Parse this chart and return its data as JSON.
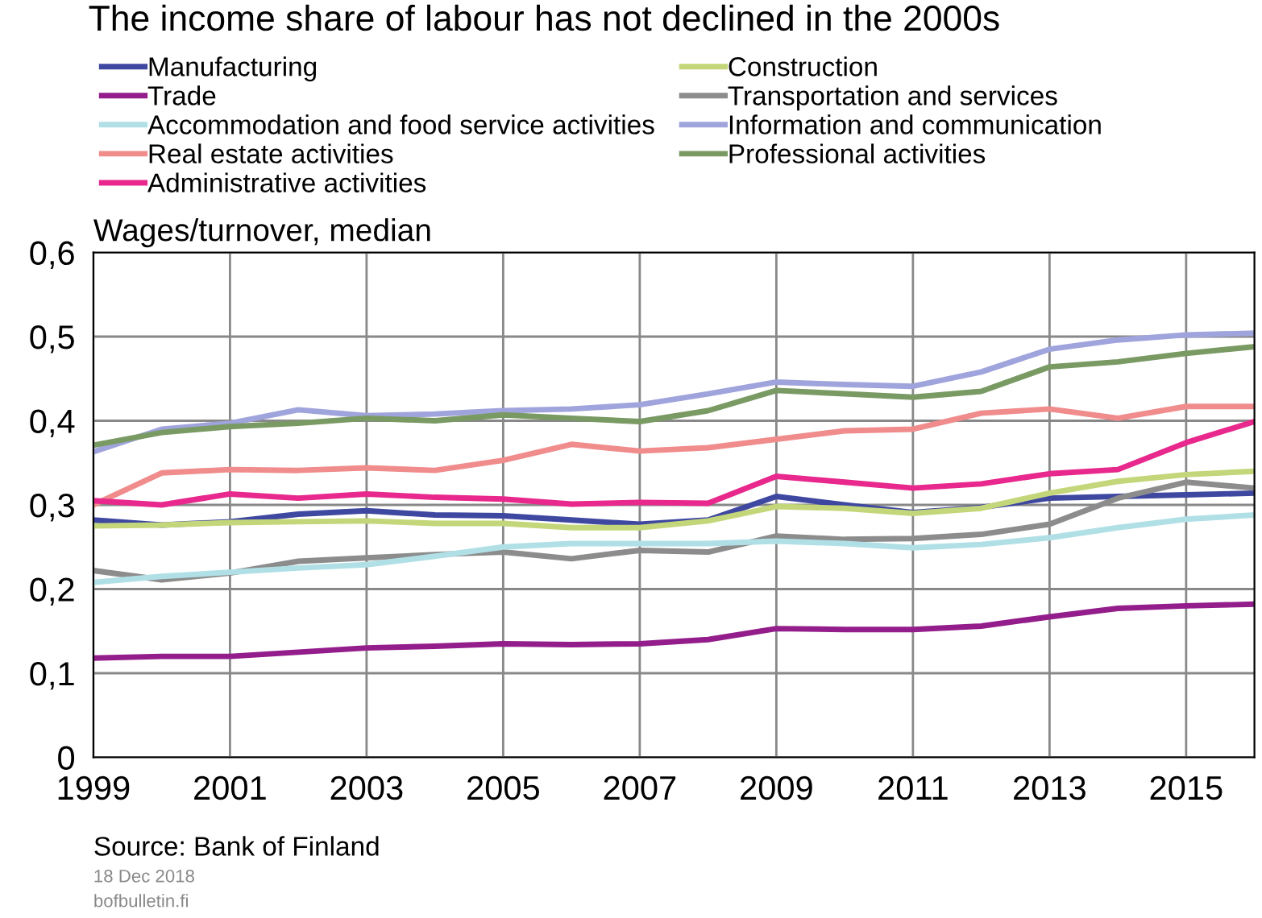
{
  "chart_data": {
    "type": "line",
    "title": "The income share of labour has not declined in the 2000s",
    "ylabel": "Wages/turnover, median",
    "x": [
      1999,
      2000,
      2001,
      2002,
      2003,
      2004,
      2005,
      2006,
      2007,
      2008,
      2009,
      2010,
      2011,
      2012,
      2013,
      2014,
      2015,
      2016
    ],
    "series": [
      {
        "name": "Manufacturing",
        "color": "#3f48a0",
        "values": [
          0.282,
          0.276,
          0.28,
          0.289,
          0.293,
          0.288,
          0.287,
          0.282,
          0.277,
          0.282,
          0.31,
          0.3,
          0.291,
          0.297,
          0.308,
          0.31,
          0.312,
          0.314
        ]
      },
      {
        "name": "Construction",
        "color": "#c4d67a",
        "values": [
          0.275,
          0.276,
          0.279,
          0.28,
          0.281,
          0.278,
          0.278,
          0.273,
          0.273,
          0.281,
          0.298,
          0.296,
          0.29,
          0.296,
          0.314,
          0.328,
          0.336,
          0.34
        ]
      },
      {
        "name": "Trade",
        "color": "#941d8c",
        "values": [
          0.118,
          0.12,
          0.12,
          0.125,
          0.13,
          0.132,
          0.135,
          0.134,
          0.135,
          0.14,
          0.153,
          0.152,
          0.152,
          0.156,
          0.167,
          0.177,
          0.18,
          0.182
        ]
      },
      {
        "name": "Transportation and services",
        "color": "#8c8c8c",
        "values": [
          0.222,
          0.211,
          0.219,
          0.233,
          0.237,
          0.241,
          0.244,
          0.236,
          0.246,
          0.244,
          0.263,
          0.259,
          0.26,
          0.265,
          0.277,
          0.308,
          0.327,
          0.32
        ]
      },
      {
        "name": "Accommodation and food service activities",
        "color": "#b0e0e6",
        "values": [
          0.208,
          0.215,
          0.22,
          0.225,
          0.229,
          0.239,
          0.25,
          0.254,
          0.254,
          0.254,
          0.257,
          0.254,
          0.249,
          0.253,
          0.261,
          0.273,
          0.283,
          0.288
        ]
      },
      {
        "name": "Information and communication",
        "color": "#a0a4dc",
        "values": [
          0.363,
          0.39,
          0.397,
          0.413,
          0.406,
          0.408,
          0.412,
          0.414,
          0.419,
          0.432,
          0.446,
          0.443,
          0.441,
          0.458,
          0.485,
          0.496,
          0.502,
          0.504
        ]
      },
      {
        "name": "Real estate activities",
        "color": "#f08c8c",
        "values": [
          0.3,
          0.338,
          0.342,
          0.341,
          0.344,
          0.341,
          0.353,
          0.372,
          0.364,
          0.368,
          0.378,
          0.388,
          0.39,
          0.409,
          0.414,
          0.403,
          0.417,
          0.417
        ]
      },
      {
        "name": "Professional activities",
        "color": "#7a9a64",
        "values": [
          0.371,
          0.386,
          0.393,
          0.397,
          0.403,
          0.4,
          0.407,
          0.403,
          0.399,
          0.412,
          0.436,
          0.432,
          0.428,
          0.435,
          0.464,
          0.47,
          0.48,
          0.488
        ]
      },
      {
        "name": "Administrative activities",
        "color": "#e8288c",
        "values": [
          0.305,
          0.3,
          0.313,
          0.308,
          0.313,
          0.309,
          0.307,
          0.301,
          0.303,
          0.302,
          0.334,
          0.327,
          0.32,
          0.325,
          0.337,
          0.342,
          0.374,
          0.399
        ]
      }
    ],
    "xlim": [
      1999,
      2016
    ],
    "xticks": [
      1999,
      2001,
      2003,
      2005,
      2007,
      2009,
      2011,
      2013,
      2015
    ],
    "ylim": [
      0,
      0.6
    ],
    "yticks": [
      0,
      {
        "value": 0.1,
        "label": "0,1"
      },
      {
        "value": 0.2,
        "label": "0,2"
      },
      {
        "value": 0.3,
        "label": "0,3"
      },
      {
        "value": 0.4,
        "label": "0,4"
      },
      {
        "value": 0.5,
        "label": "0,5"
      },
      {
        "value": 0.6,
        "label": "0,6"
      }
    ],
    "grid": true,
    "legend": "top",
    "marker": "none",
    "line_style": "solid",
    "annotations": [
      "Source: Bank of Finland",
      "18 Dec 2018",
      "bofbulletin.fi"
    ]
  }
}
